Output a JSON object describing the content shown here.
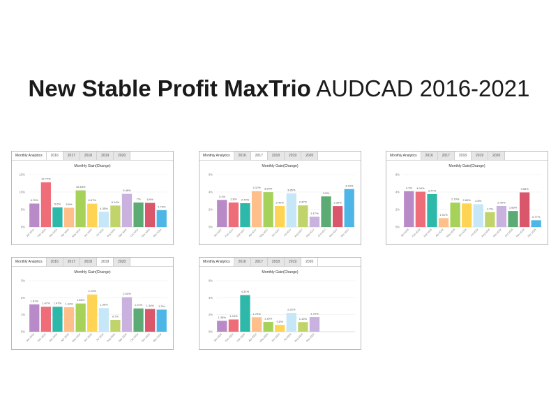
{
  "page": {
    "title_bold": "New Stable Profit MaxTrio",
    "title_light": "AUDCAD 2016-2021"
  },
  "tabs": {
    "heading": "Monthly Analytics",
    "items": [
      "2016",
      "2017",
      "2018",
      "2019",
      "2020"
    ]
  },
  "colors": {
    "palette": [
      "#b98ac8",
      "#ef6d78",
      "#2eb8aa",
      "#ffbf8a",
      "#a6d25a",
      "#ffd454",
      "#c5e7f7",
      "#c1d46c",
      "#c9b1e0",
      "#5cab74",
      "#d9566b",
      "#4db6e6"
    ]
  },
  "chart_data": [
    {
      "type": "bar",
      "title": "Monthly Gain(Change)",
      "active_tab": "2016",
      "yticks": [
        "15%",
        "10%",
        "5%",
        "0%"
      ],
      "ylim": [
        0,
        15
      ],
      "categories": [
        "Jan 2016",
        "Feb 2016",
        "Mar 2016",
        "Apr 2016",
        "May 2016",
        "Jun 2016",
        "Jul 2016",
        "Aug 2016",
        "Sep 2016",
        "Oct 2016",
        "Nov 2016",
        "Dec 2016"
      ],
      "values": [
        6.7,
        12.77,
        5.6,
        5.5,
        10.48,
        6.67,
        4.35,
        6.14,
        9.48,
        7.0,
        6.9,
        4.79
      ],
      "labels": [
        "6.70%",
        "12.77%",
        "5.6%",
        "5.5%",
        "10.48%",
        "6.67%",
        "4.35%",
        "6.14%",
        "9.48%",
        "7%",
        "6.9%",
        "4.79%"
      ],
      "colors": [
        "#b98ac8",
        "#ef6d78",
        "#2eb8aa",
        "#ffbf8a",
        "#a6d25a",
        "#ffd454",
        "#c5e7f7",
        "#c1d46c",
        "#c9b1e0",
        "#5cab74",
        "#d9566b",
        "#4db6e6"
      ]
    },
    {
      "type": "bar",
      "title": "Monthly Gain(Change)",
      "active_tab": "2017",
      "yticks": [
        "6%",
        "4%",
        "2%",
        "0%"
      ],
      "ylim": [
        0,
        6
      ],
      "categories": [
        "Jan 2017",
        "Feb 2017",
        "Mar 2017",
        "Apr 2017",
        "May 2017",
        "Jun 2017",
        "Jul 2017",
        "Aug 2017",
        "Sep 2017",
        "Oct 2017",
        "Nov 2017",
        "Dec 2017"
      ],
      "values": [
        3.1,
        2.8,
        2.72,
        4.11,
        3.99,
        2.4,
        3.85,
        2.47,
        1.17,
        3.5,
        2.39,
        4.34
      ],
      "labels": [
        "3.1%",
        "2.8%",
        "2.72%",
        "4.11%",
        "3.99%",
        "2.40%",
        "3.85%",
        "2.47%",
        "1.17%",
        "3.5%",
        "2.39%",
        "4.34%"
      ],
      "colors": [
        "#b98ac8",
        "#ef6d78",
        "#2eb8aa",
        "#ffbf8a",
        "#a6d25a",
        "#ffd454",
        "#c5e7f7",
        "#c1d46c",
        "#c9b1e0",
        "#5cab74",
        "#d9566b",
        "#4db6e6"
      ]
    },
    {
      "type": "bar",
      "title": "Monthly Gain(Change)",
      "active_tab": "2018",
      "yticks": [
        "6%",
        "4%",
        "2%",
        "0%"
      ],
      "ylim": [
        0,
        6
      ],
      "categories": [
        "Jan 2018",
        "Feb 2018",
        "Mar 2018",
        "Apr 2018",
        "May 2018",
        "Jun 2018",
        "Jul 2018",
        "Aug 2018",
        "Sep 2018",
        "Oct 2018",
        "Nov 2018",
        "Dec 2018"
      ],
      "values": [
        4.1,
        4.04,
        3.77,
        1.01,
        2.79,
        2.69,
        2.6,
        1.7,
        2.4,
        1.83,
        3.96,
        0.77
      ],
      "labels": [
        "4.1%",
        "4.04%",
        "3.77%",
        "1.01%",
        "2.79%",
        "2.69%",
        "2.6%",
        "1.7%",
        "2.40%",
        "1.83%",
        "3.96%",
        "0.77%"
      ],
      "colors": [
        "#b98ac8",
        "#ef6d78",
        "#2eb8aa",
        "#ffbf8a",
        "#a6d25a",
        "#ffd454",
        "#c5e7f7",
        "#c1d46c",
        "#c9b1e0",
        "#5cab74",
        "#d9566b",
        "#4db6e6"
      ]
    },
    {
      "type": "bar",
      "title": "Monthly Gain(Change)",
      "active_tab": "2019",
      "yticks": [
        "3%",
        "2%",
        "1%",
        "0%"
      ],
      "ylim": [
        0,
        3
      ],
      "categories": [
        "Jan 2019",
        "Feb 2019",
        "Mar 2019",
        "Apr 2019",
        "May 2019",
        "Jun 2019",
        "Jul 2019",
        "Aug 2019",
        "Sep 2019",
        "Oct 2019",
        "Nov 2019",
        "Dec 2019"
      ],
      "values": [
        1.61,
        1.47,
        1.47,
        1.44,
        1.66,
        2.19,
        1.39,
        0.7,
        2.03,
        1.37,
        1.34,
        1.3
      ],
      "labels": [
        "1.61%",
        "1.47%",
        "1.47%",
        "1.44%",
        "1.66%",
        "2.19%",
        "1.39%",
        "0.7%",
        "2.03%",
        "1.37%",
        "1.34%",
        "1.3%"
      ],
      "colors": [
        "#b98ac8",
        "#ef6d78",
        "#2eb8aa",
        "#ffbf8a",
        "#a6d25a",
        "#ffd454",
        "#c5e7f7",
        "#c1d46c",
        "#c9b1e0",
        "#5cab74",
        "#d9566b",
        "#4db6e6"
      ]
    },
    {
      "type": "bar",
      "title": "Monthly Gain(Change)",
      "active_tab": "2020",
      "yticks": [
        "6%",
        "4%",
        "2%",
        "0%"
      ],
      "ylim": [
        0,
        6
      ],
      "categories": [
        "Jan 2020",
        "Feb 2020",
        "Mar 2020",
        "Apr 2020",
        "May 2020",
        "Jun 2020",
        "Jul 2020",
        "Aug 2020",
        "Sep 2020"
      ],
      "values": [
        1.28,
        1.44,
        4.31,
        1.7,
        1.15,
        0.8,
        2.22,
        1.13,
        1.72
      ],
      "labels": [
        "1.28%",
        "1.44%",
        "4.31%",
        "1.70%",
        "1.15%",
        "0.8%",
        "2.22%",
        "1.13%",
        "1.72%"
      ],
      "colors": [
        "#b98ac8",
        "#ef6d78",
        "#2eb8aa",
        "#ffbf8a",
        "#a6d25a",
        "#ffd454",
        "#c5e7f7",
        "#c1d46c",
        "#c9b1e0"
      ]
    }
  ]
}
